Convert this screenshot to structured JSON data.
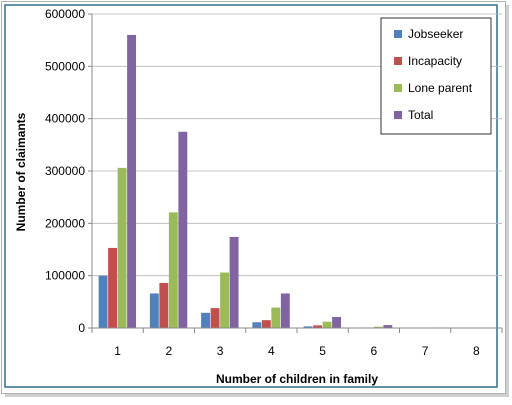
{
  "chart_data": {
    "type": "bar",
    "title": "",
    "xlabel": "Number of children in family",
    "ylabel": "Number of claimants",
    "categories": [
      "1",
      "2",
      "3",
      "4",
      "5",
      "6",
      "7",
      "8"
    ],
    "ylim": [
      0,
      600000
    ],
    "yticks": [
      0,
      100000,
      200000,
      300000,
      400000,
      500000,
      600000
    ],
    "grid": true,
    "legend_position": "top-right",
    "series": [
      {
        "name": "Jobseeker",
        "color": "#4F81BD",
        "values": [
          100000,
          66000,
          29000,
          11000,
          3000,
          500,
          100,
          0
        ]
      },
      {
        "name": "Incapacity",
        "color": "#C0504D",
        "values": [
          153000,
          86000,
          38000,
          15000,
          5000,
          1000,
          200,
          0
        ]
      },
      {
        "name": "Lone parent",
        "color": "#9BBB59",
        "values": [
          306000,
          221000,
          106000,
          39000,
          12000,
          2500,
          500,
          100
        ]
      },
      {
        "name": "Total",
        "color": "#8064A2",
        "values": [
          560000,
          375000,
          174000,
          66000,
          21000,
          5500,
          1000,
          200
        ]
      }
    ]
  }
}
